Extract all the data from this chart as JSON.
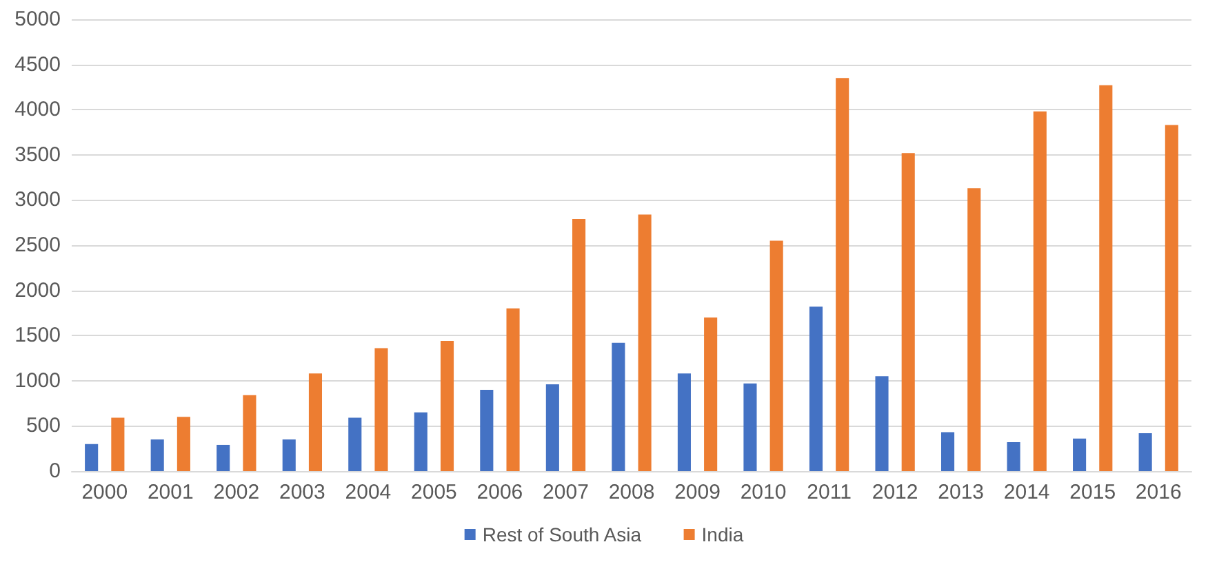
{
  "chart_data": {
    "type": "bar",
    "categories": [
      "2000",
      "2001",
      "2002",
      "2003",
      "2004",
      "2005",
      "2006",
      "2007",
      "2008",
      "2009",
      "2010",
      "2011",
      "2012",
      "2013",
      "2014",
      "2015",
      "2016"
    ],
    "series": [
      {
        "name": "Rest of South Asia",
        "color": "#4472c4",
        "values": [
          300,
          350,
          290,
          350,
          590,
          650,
          900,
          960,
          1420,
          1080,
          970,
          1820,
          1050,
          430,
          320,
          360,
          420
        ]
      },
      {
        "name": "India",
        "color": "#ed7d31",
        "values": [
          590,
          600,
          840,
          1080,
          1360,
          1440,
          1800,
          2790,
          2840,
          1700,
          2550,
          4350,
          3520,
          3130,
          3980,
          4270,
          3830
        ]
      }
    ],
    "ylim": [
      0,
      5000
    ],
    "yticks": [
      0,
      500,
      1000,
      1500,
      2000,
      2500,
      3000,
      3500,
      4000,
      4500,
      5000
    ],
    "grid": "y",
    "legend": "bottom"
  }
}
